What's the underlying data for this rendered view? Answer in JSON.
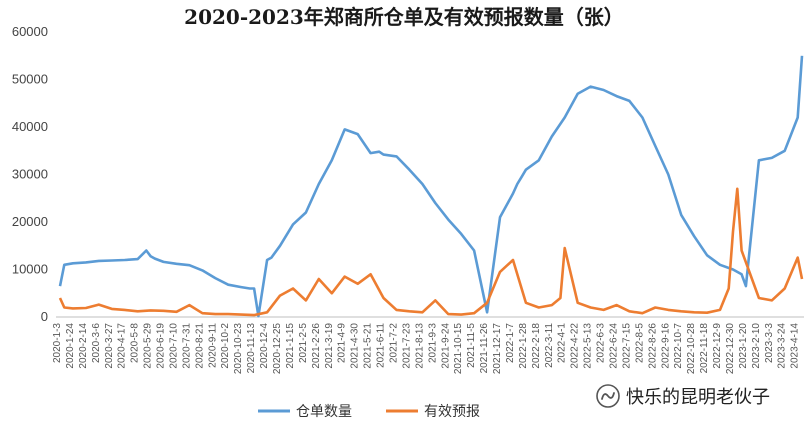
{
  "chart_data": {
    "type": "line",
    "title": "2020-2023年郑商所仓单及有效预报数量（张）",
    "xlabel": "",
    "ylabel": "",
    "ylim": [
      0,
      60000
    ],
    "yticks": [
      0,
      10000,
      20000,
      30000,
      40000,
      50000,
      60000
    ],
    "grid": false,
    "legend_position": "bottom",
    "x_tick_labels": [
      "2020-1-3",
      "2020-1-24",
      "2020-2-14",
      "2020-3-6",
      "2020-3-27",
      "2020-4-17",
      "2020-5-8",
      "2020-5-29",
      "2020-6-19",
      "2020-7-10",
      "2020-7-31",
      "2020-8-21",
      "2020-9-11",
      "2020-10-2",
      "2020-10-23",
      "2020-11-13",
      "2020-12-4",
      "2020-12-25",
      "2021-1-15",
      "2021-2-5",
      "2021-2-26",
      "2021-3-19",
      "2021-4-9",
      "2021-4-30",
      "2021-5-21",
      "2021-6-11",
      "2021-7-2",
      "2021-7-23",
      "2021-8-13",
      "2021-9-3",
      "2021-9-24",
      "2021-10-15",
      "2021-11-5",
      "2021-11-26",
      "2021-12-17",
      "2022-1-7",
      "2022-1-28",
      "2022-2-18",
      "2022-3-11",
      "2022-4-1",
      "2022-4-22",
      "2022-5-13",
      "2022-6-3",
      "2022-6-24",
      "2022-7-15",
      "2022-8-5",
      "2022-8-26",
      "2022-9-16",
      "2022-10-7",
      "2022-10-28",
      "2022-11-18",
      "2022-12-9",
      "2022-12-30",
      "2023-1-20",
      "2023-2-10",
      "2023-3-3",
      "2023-3-24",
      "2023-4-14"
    ],
    "series": [
      {
        "name": "仓单数量",
        "color": "#5b9bd5",
        "x": [
          "2020-1-3",
          "2020-1-10",
          "2020-1-24",
          "2020-2-14",
          "2020-3-6",
          "2020-3-27",
          "2020-4-17",
          "2020-5-8",
          "2020-5-22",
          "2020-5-29",
          "2020-6-5",
          "2020-6-19",
          "2020-7-10",
          "2020-7-31",
          "2020-8-21",
          "2020-9-11",
          "2020-10-2",
          "2020-10-23",
          "2020-11-6",
          "2020-11-13",
          "2020-11-20",
          "2020-12-4",
          "2020-12-11",
          "2020-12-25",
          "2021-1-15",
          "2021-2-5",
          "2021-2-26",
          "2021-3-19",
          "2021-4-9",
          "2021-4-30",
          "2021-5-21",
          "2021-6-4",
          "2021-6-11",
          "2021-7-2",
          "2021-7-23",
          "2021-8-13",
          "2021-9-3",
          "2021-9-24",
          "2021-10-15",
          "2021-11-5",
          "2021-11-26",
          "2021-12-17",
          "2022-1-7",
          "2022-1-14",
          "2022-1-21",
          "2022-1-28",
          "2022-2-18",
          "2022-3-11",
          "2022-4-1",
          "2022-4-22",
          "2022-5-13",
          "2022-6-3",
          "2022-6-24",
          "2022-7-15",
          "2022-8-5",
          "2022-8-26",
          "2022-9-16",
          "2022-10-7",
          "2022-10-28",
          "2022-11-18",
          "2022-12-9",
          "2022-12-30",
          "2023-1-13",
          "2023-1-20",
          "2023-2-10",
          "2023-3-3",
          "2023-3-24",
          "2023-4-14",
          "2023-4-21"
        ],
        "values": [
          6500,
          11000,
          11300,
          11500,
          11800,
          11900,
          12000,
          12200,
          14000,
          12800,
          12300,
          11600,
          11200,
          10900,
          9800,
          8200,
          6800,
          6300,
          6000,
          6000,
          200,
          12000,
          12500,
          15000,
          19500,
          22000,
          28000,
          33000,
          39500,
          38500,
          34500,
          34800,
          34200,
          33800,
          31000,
          28000,
          24000,
          20500,
          17500,
          14000,
          1000,
          21000,
          26000,
          28000,
          29500,
          31000,
          33000,
          38000,
          42000,
          47000,
          48500,
          47800,
          46500,
          45500,
          42000,
          36000,
          30000,
          21500,
          17000,
          13000,
          11000,
          10000,
          9000,
          6500,
          33000,
          33500,
          35000,
          42000,
          55000
        ]
      },
      {
        "name": "有效预报",
        "color": "#ed7d31",
        "x": [
          "2020-1-3",
          "2020-1-10",
          "2020-1-24",
          "2020-2-14",
          "2020-3-6",
          "2020-3-27",
          "2020-4-17",
          "2020-5-8",
          "2020-5-29",
          "2020-6-19",
          "2020-7-10",
          "2020-7-31",
          "2020-8-21",
          "2020-9-11",
          "2020-10-2",
          "2020-10-23",
          "2020-11-13",
          "2020-12-4",
          "2020-12-25",
          "2021-1-15",
          "2021-2-5",
          "2021-2-26",
          "2021-3-19",
          "2021-4-9",
          "2021-4-30",
          "2021-5-21",
          "2021-6-11",
          "2021-7-2",
          "2021-7-23",
          "2021-8-13",
          "2021-9-3",
          "2021-9-24",
          "2021-10-15",
          "2021-11-5",
          "2021-11-26",
          "2021-12-17",
          "2022-1-7",
          "2022-1-28",
          "2022-2-18",
          "2022-3-11",
          "2022-3-25",
          "2022-4-1",
          "2022-4-22",
          "2022-5-13",
          "2022-6-3",
          "2022-6-24",
          "2022-7-15",
          "2022-8-5",
          "2022-8-26",
          "2022-9-16",
          "2022-10-7",
          "2022-10-28",
          "2022-11-18",
          "2022-12-9",
          "2022-12-23",
          "2022-12-30",
          "2023-1-6",
          "2023-1-13",
          "2023-2-10",
          "2023-3-3",
          "2023-3-24",
          "2023-4-14",
          "2023-4-21"
        ],
        "values": [
          4000,
          2000,
          1800,
          1900,
          2600,
          1700,
          1500,
          1200,
          1400,
          1300,
          1100,
          2500,
          800,
          600,
          600,
          500,
          400,
          1000,
          4500,
          6000,
          3500,
          8000,
          5000,
          8500,
          7000,
          9000,
          4000,
          1500,
          1200,
          1000,
          3500,
          600,
          500,
          800,
          3000,
          9500,
          12000,
          3000,
          2000,
          2500,
          4000,
          14500,
          3000,
          2000,
          1500,
          2500,
          1200,
          800,
          2000,
          1500,
          1200,
          1000,
          900,
          1500,
          6000,
          18000,
          27000,
          14000,
          4000,
          3500,
          6000,
          12500,
          8000
        ]
      }
    ]
  },
  "legend": {
    "items": [
      {
        "label": "仓单数量",
        "color": "#5b9bd5"
      },
      {
        "label": "有效预报",
        "color": "#ed7d31"
      }
    ]
  },
  "watermark": {
    "text": "快乐的昆明老伙子",
    "icon": "wechat-official-account-icon"
  }
}
